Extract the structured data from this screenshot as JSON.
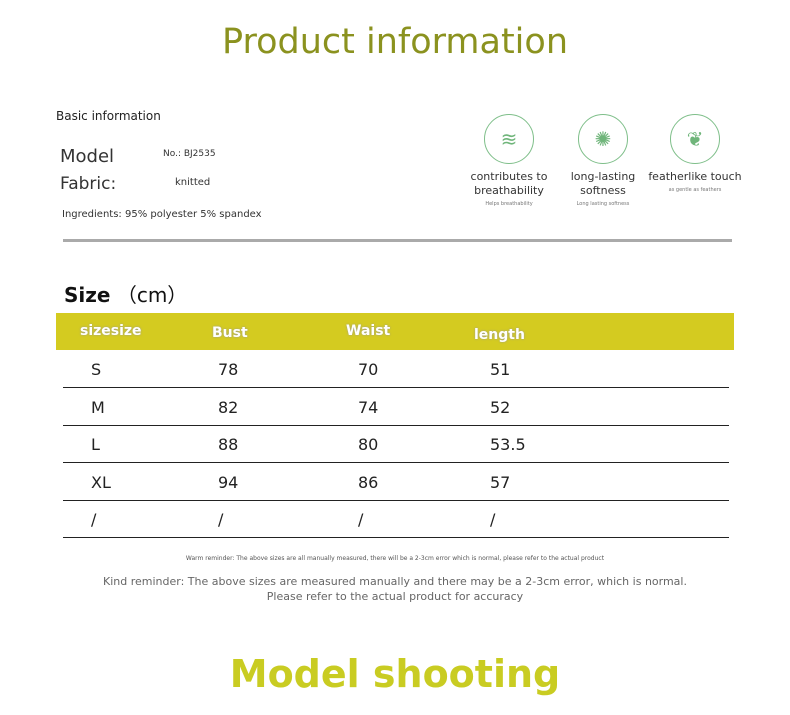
{
  "title": "Product information",
  "basic": {
    "heading": "Basic information",
    "model_label": "Model",
    "model_value": "No.: BJ2535",
    "fabric_label": "Fabric:",
    "fabric_value": "knitted",
    "ingredients": "Ingredients: 95% polyester 5% spandex"
  },
  "features": [
    {
      "icon": "breathable-fabric-icon",
      "title": "contributes to breathability",
      "sub": "Helps breathability"
    },
    {
      "icon": "softness-icon",
      "title": "long-lasting softness",
      "sub": "Long lasting softness"
    },
    {
      "icon": "feather-hand-icon",
      "title": "featherlike touch",
      "sub": "as gentle as feathers"
    }
  ],
  "size": {
    "heading": "Size",
    "unit": "（cm）",
    "headers": [
      "sizesize",
      "Bust",
      "Waist",
      "length"
    ],
    "rows": [
      [
        "S",
        "78",
        "70",
        "51"
      ],
      [
        "M",
        "82",
        "74",
        "52"
      ],
      [
        "L",
        "88",
        "80",
        "53.5"
      ],
      [
        "XL",
        "94",
        "86",
        "57"
      ],
      [
        "/",
        "/",
        "/",
        "/"
      ]
    ]
  },
  "warm_reminder": "Warm reminder: The above sizes are all manually measured, there will be a 2-3cm error which is normal, please refer to the actual product",
  "kind_reminder_1": "Kind reminder: The above sizes are measured manually and there may be a 2-3cm error, which is normal.",
  "kind_reminder_2": "Please refer to the actual product for accuracy",
  "model_shooting": "Model shooting",
  "colors": {
    "title": "#8b921f",
    "header_bg": "#d4cb20",
    "shoot": "#c9cc22",
    "icon": "#7fbf8a"
  }
}
